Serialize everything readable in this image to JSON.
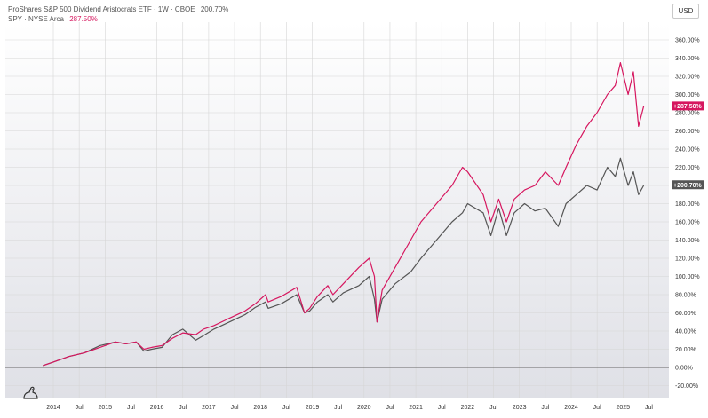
{
  "legend": {
    "series1_title": "ProShares S&P 500 Dividend Aristocrats ETF · 1W · CBOE",
    "series1_value": "200.70%",
    "series2_title": "SPY · NYSE Arca",
    "series2_value": "287.50%"
  },
  "currency": "USD",
  "colors": {
    "spy": "#d6175f",
    "nobl": "#555555",
    "grid": "#d6d6d6",
    "background_top": "#ffffff",
    "background_bottom": "#dfe0e6",
    "zero_line": "#666666"
  },
  "chart_data": {
    "type": "line",
    "y_unit": "%",
    "ylim": [
      -20,
      360
    ],
    "xlim": [
      2013.55,
      2025.75
    ],
    "y_ticks": [
      "360.00%",
      "340.00%",
      "320.00%",
      "300.00%",
      "280.00%",
      "260.00%",
      "240.00%",
      "220.00%",
      "200.00%",
      "180.00%",
      "160.00%",
      "140.00%",
      "120.00%",
      "100.00%",
      "80.00%",
      "60.00%",
      "40.00%",
      "20.00%",
      "0.00%",
      "-20.00%"
    ],
    "x_ticks": [
      {
        "label": "2014",
        "x": 2014.0
      },
      {
        "label": "Jul",
        "x": 2014.5
      },
      {
        "label": "2015",
        "x": 2015.0
      },
      {
        "label": "Jul",
        "x": 2015.5
      },
      {
        "label": "2016",
        "x": 2016.0
      },
      {
        "label": "Jul",
        "x": 2016.5
      },
      {
        "label": "2017",
        "x": 2017.0
      },
      {
        "label": "Jul",
        "x": 2017.5
      },
      {
        "label": "2018",
        "x": 2018.0
      },
      {
        "label": "Jul",
        "x": 2018.5
      },
      {
        "label": "2019",
        "x": 2019.0
      },
      {
        "label": "Jul",
        "x": 2019.5
      },
      {
        "label": "2020",
        "x": 2020.0
      },
      {
        "label": "Jul",
        "x": 2020.5
      },
      {
        "label": "2021",
        "x": 2021.0
      },
      {
        "label": "Jul",
        "x": 2021.5
      },
      {
        "label": "2022",
        "x": 2022.0
      },
      {
        "label": "Jul",
        "x": 2022.5
      },
      {
        "label": "2023",
        "x": 2023.0
      },
      {
        "label": "Jul",
        "x": 2023.5
      },
      {
        "label": "2024",
        "x": 2024.0
      },
      {
        "label": "Jul",
        "x": 2024.5
      },
      {
        "label": "2025",
        "x": 2025.0
      },
      {
        "label": "Jul",
        "x": 2025.5
      }
    ],
    "series": [
      {
        "key": "nobl",
        "x": [
          2013.8,
          2014.0,
          2014.3,
          2014.6,
          2014.9,
          2015.2,
          2015.4,
          2015.6,
          2015.75,
          2015.9,
          2016.1,
          2016.3,
          2016.5,
          2016.75,
          2016.9,
          2017.1,
          2017.4,
          2017.7,
          2017.9,
          2018.1,
          2018.15,
          2018.4,
          2018.7,
          2018.85,
          2018.95,
          2019.1,
          2019.3,
          2019.4,
          2019.6,
          2019.9,
          2020.1,
          2020.2,
          2020.25,
          2020.35,
          2020.6,
          2020.9,
          2021.1,
          2021.4,
          2021.7,
          2021.9,
          2022.0,
          2022.3,
          2022.45,
          2022.6,
          2022.75,
          2022.9,
          2023.1,
          2023.3,
          2023.5,
          2023.75,
          2023.9,
          2024.1,
          2024.3,
          2024.5,
          2024.7,
          2024.85,
          2024.95,
          2025.1,
          2025.2,
          2025.3,
          2025.4
        ],
        "y": [
          2,
          6,
          12,
          16,
          24,
          28,
          26,
          28,
          18,
          20,
          22,
          36,
          42,
          30,
          35,
          42,
          50,
          58,
          66,
          72,
          65,
          70,
          80,
          60,
          62,
          72,
          80,
          72,
          82,
          90,
          100,
          75,
          50,
          75,
          92,
          105,
          120,
          140,
          160,
          170,
          180,
          170,
          145,
          175,
          145,
          170,
          180,
          172,
          175,
          155,
          180,
          190,
          200,
          195,
          220,
          210,
          230,
          200,
          215,
          190,
          200
        ]
      },
      {
        "key": "spy",
        "x": [
          2013.8,
          2014.0,
          2014.3,
          2014.6,
          2014.9,
          2015.2,
          2015.4,
          2015.6,
          2015.75,
          2015.9,
          2016.1,
          2016.3,
          2016.5,
          2016.75,
          2016.9,
          2017.1,
          2017.4,
          2017.7,
          2017.9,
          2018.1,
          2018.15,
          2018.4,
          2018.7,
          2018.85,
          2018.95,
          2019.1,
          2019.3,
          2019.4,
          2019.6,
          2019.9,
          2020.1,
          2020.2,
          2020.25,
          2020.35,
          2020.6,
          2020.9,
          2021.1,
          2021.4,
          2021.7,
          2021.9,
          2022.0,
          2022.3,
          2022.45,
          2022.6,
          2022.75,
          2022.9,
          2023.1,
          2023.3,
          2023.5,
          2023.75,
          2023.9,
          2024.1,
          2024.3,
          2024.5,
          2024.7,
          2024.85,
          2024.95,
          2025.1,
          2025.2,
          2025.3,
          2025.4
        ],
        "y": [
          2,
          6,
          12,
          16,
          22,
          28,
          26,
          28,
          20,
          22,
          24,
          32,
          38,
          36,
          42,
          46,
          54,
          62,
          70,
          80,
          72,
          78,
          88,
          60,
          65,
          78,
          90,
          80,
          92,
          110,
          120,
          100,
          50,
          85,
          110,
          140,
          160,
          180,
          200,
          220,
          215,
          190,
          160,
          185,
          160,
          185,
          195,
          200,
          215,
          200,
          220,
          245,
          265,
          280,
          300,
          310,
          335,
          300,
          325,
          265,
          287
        ]
      }
    ],
    "last_labels": [
      {
        "key": "spy",
        "text": "+287.50%",
        "value": 287.5
      },
      {
        "key": "nobl",
        "text": "+200.70%",
        "value": 200.7
      }
    ]
  }
}
